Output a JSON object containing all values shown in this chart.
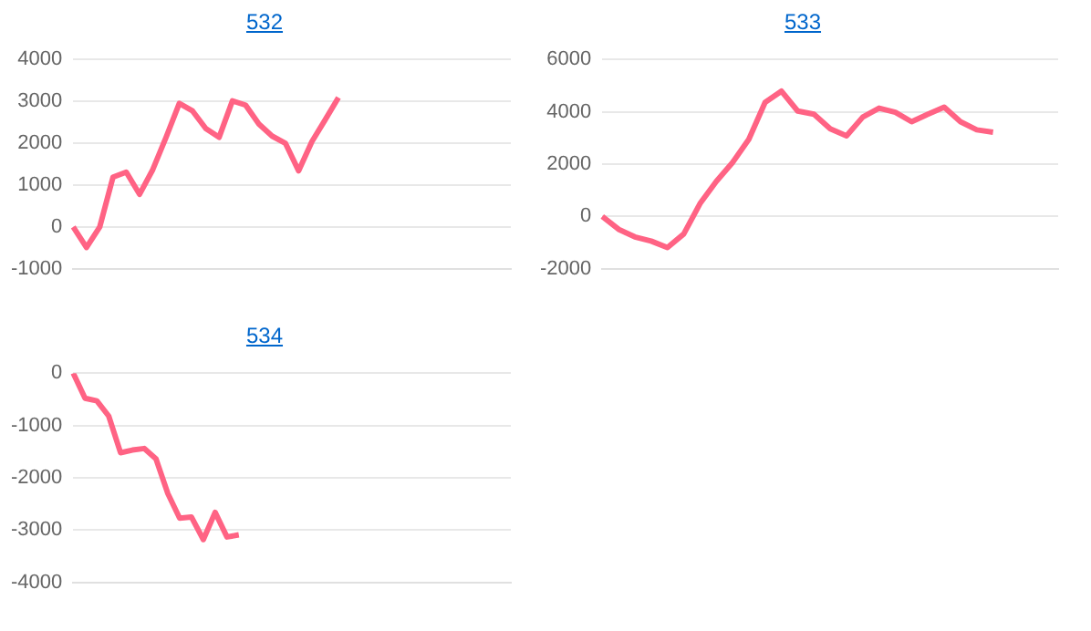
{
  "chart_data": [
    {
      "type": "line",
      "title": "532",
      "categories": [
        null,
        null,
        null,
        null,
        null,
        null,
        null,
        null,
        null,
        null,
        null,
        null,
        null,
        null,
        null,
        null,
        null,
        null,
        null,
        null,
        null,
        null,
        null,
        null,
        null,
        null,
        null,
        null,
        null,
        null,
        null,
        null,
        null,
        null
      ],
      "series": [
        {
          "color": "#ff6384",
          "values": [
            0,
            -490,
            0,
            1190,
            1310,
            780,
            1370,
            2140,
            2950,
            2770,
            2350,
            2140,
            3010,
            2910,
            2460,
            2170,
            2000,
            1340,
            2040,
            2560,
            3090,
            null,
            null,
            null,
            null,
            null,
            null,
            null,
            null,
            null,
            null,
            null,
            null,
            null
          ]
        }
      ],
      "ylim": [
        -1000,
        4000
      ],
      "yticks": [
        -1000,
        0,
        1000,
        2000,
        3000,
        4000
      ],
      "grid": "y",
      "tick_labels": "y",
      "marker": "none"
    },
    {
      "type": "line",
      "title": "533",
      "categories": [
        null,
        null,
        null,
        null,
        null,
        null,
        null,
        null,
        null,
        null,
        null,
        null,
        null,
        null,
        null,
        null,
        null,
        null,
        null,
        null,
        null,
        null,
        null,
        null,
        null,
        null,
        null,
        null,
        null
      ],
      "series": [
        {
          "color": "#ff6384",
          "values": [
            0,
            -490,
            -780,
            -940,
            -1190,
            -670,
            490,
            1340,
            2060,
            2950,
            4360,
            4790,
            4030,
            3910,
            3350,
            3080,
            3800,
            4140,
            3980,
            3620,
            3910,
            4180,
            3620,
            3310,
            3220,
            null,
            null,
            null,
            null
          ]
        }
      ],
      "ylim": [
        -2000,
        6000
      ],
      "yticks": [
        -2000,
        0,
        2000,
        4000,
        6000
      ],
      "grid": "y",
      "tick_labels": "y",
      "marker": "none"
    },
    {
      "type": "line",
      "title": "534",
      "categories": [
        null,
        null,
        null,
        null,
        null,
        null,
        null,
        null,
        null,
        null,
        null,
        null,
        null,
        null,
        null,
        null,
        null,
        null,
        null,
        null,
        null,
        null,
        null,
        null,
        null,
        null,
        null,
        null,
        null,
        null,
        null,
        null,
        null,
        null,
        null,
        null,
        null,
        null
      ],
      "series": [
        {
          "color": "#ff6384",
          "values": [
            0,
            -480,
            -530,
            -820,
            -1520,
            -1470,
            -1440,
            -1640,
            -2300,
            -2770,
            -2750,
            -3180,
            -2660,
            -3130,
            -3090,
            null,
            null,
            null,
            null,
            null,
            null,
            null,
            null,
            null,
            null,
            null,
            null,
            null,
            null,
            null,
            null,
            null,
            null,
            null,
            null,
            null,
            null,
            null
          ]
        }
      ],
      "ylim": [
        -4000,
        0
      ],
      "yticks": [
        -4000,
        -3000,
        -2000,
        -1000,
        0
      ],
      "grid": "y",
      "tick_labels": "y",
      "marker": "none"
    }
  ]
}
